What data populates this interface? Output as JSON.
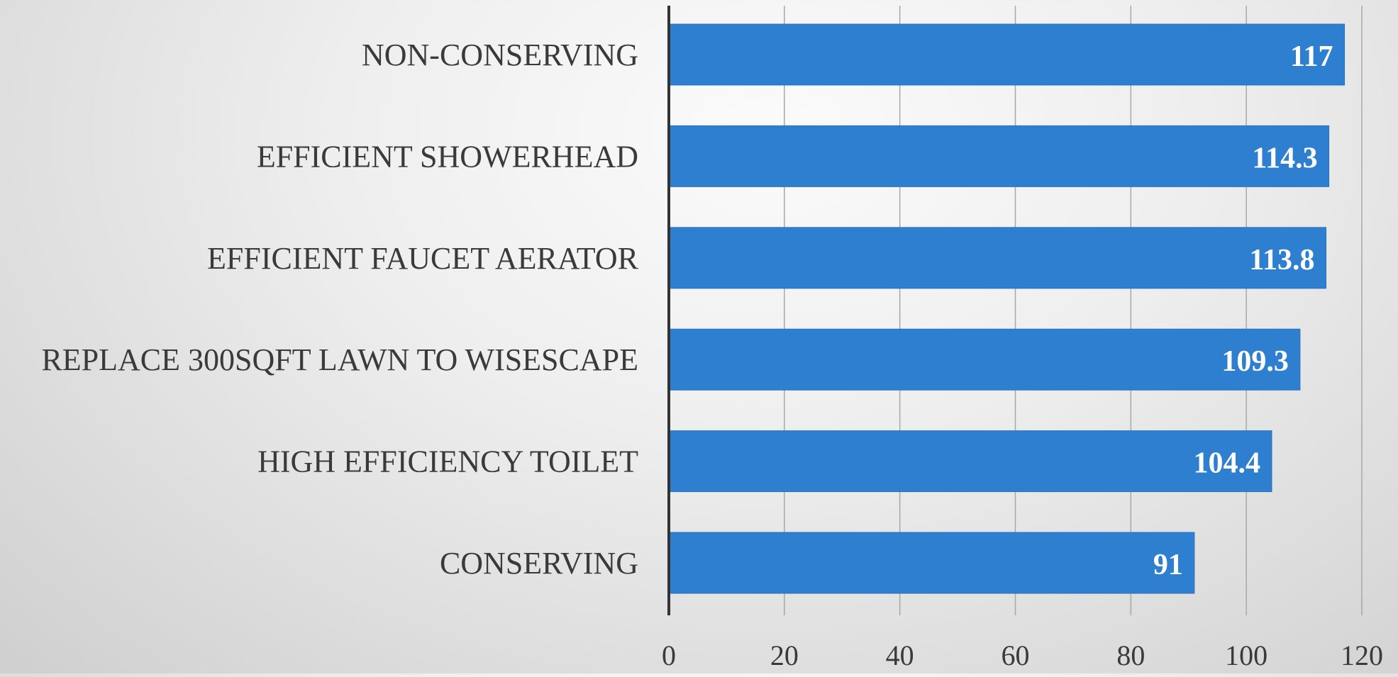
{
  "chart_data": {
    "type": "bar",
    "orientation": "horizontal",
    "title": "",
    "xlabel": "",
    "ylabel": "",
    "categories": [
      "NON-CONSERVING",
      "EFFICIENT SHOWERHEAD",
      "EFFICIENT FAUCET AERATOR",
      "REPLACE 300SQFT LAWN TO WISESCAPE",
      "HIGH EFFICIENCY TOILET",
      "CONSERVING"
    ],
    "values": [
      117,
      114.3,
      113.8,
      109.3,
      104.4,
      91
    ],
    "data_labels": [
      "117",
      "114.3",
      "113.8",
      "109.3",
      "104.4",
      "91"
    ],
    "xlim": [
      0,
      120
    ],
    "x_ticks": [
      0,
      20,
      40,
      60,
      80,
      100,
      120
    ],
    "x_tick_labels": [
      "0",
      "20",
      "40",
      "60",
      "80",
      "100",
      "120"
    ],
    "grid": true,
    "legend": "none",
    "colors": {
      "bar": "#2f7fd1",
      "bar_edge": "#2a72bf",
      "data_label": "#ffffff",
      "category_label": "#3a3a3a",
      "tick_label": "#3a3a3a",
      "gridline": "#a8a8a8",
      "axis_line": "#333333"
    }
  }
}
